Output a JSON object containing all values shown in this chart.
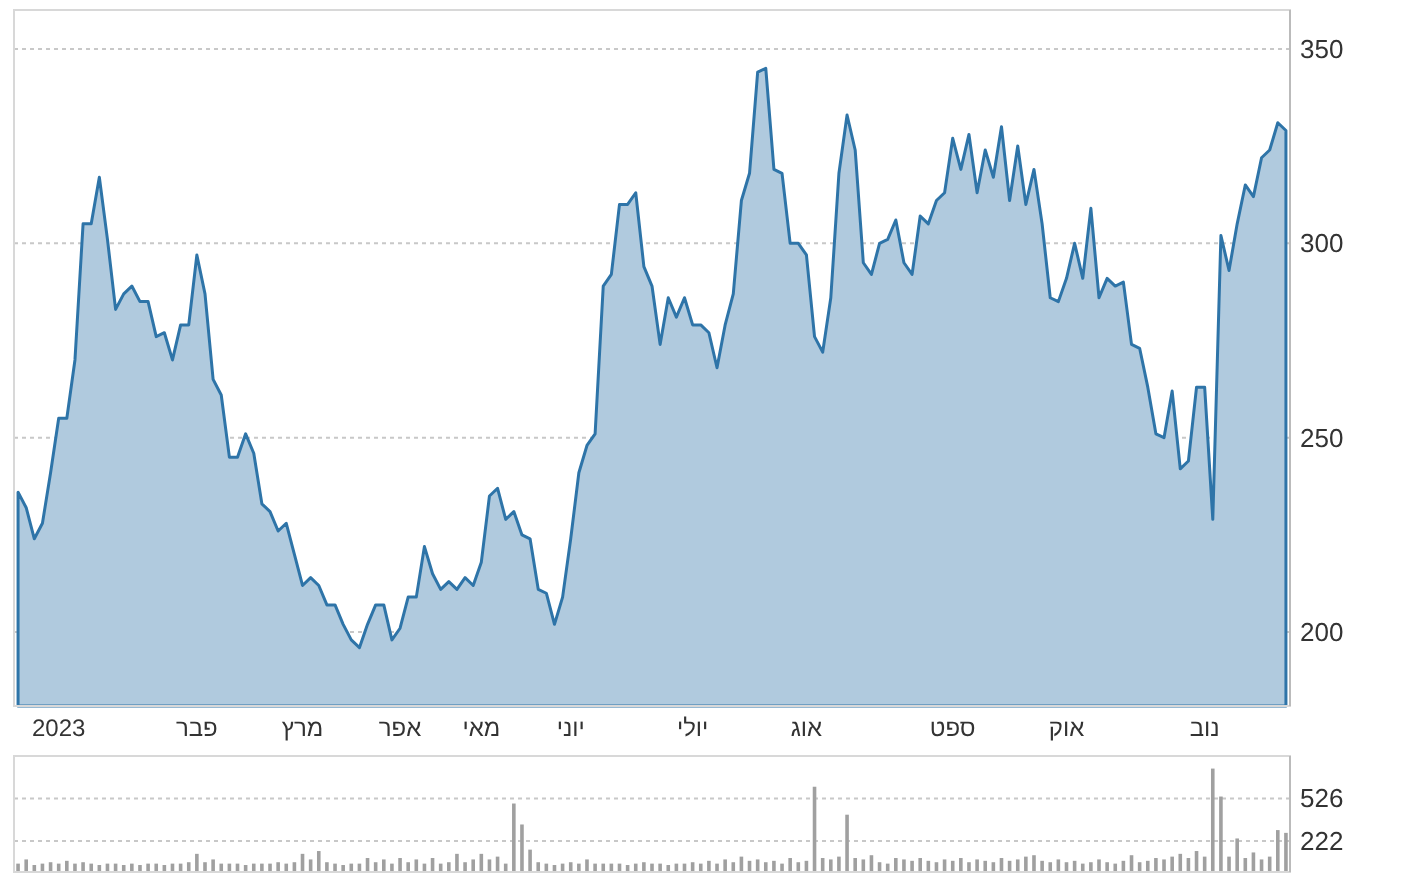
{
  "chart_data": [
    {
      "type": "area",
      "grid": "y",
      "ylim": [
        181,
        360
      ],
      "yticks": [
        200,
        250,
        300,
        350
      ],
      "categories": [
        null,
        null,
        null,
        null,
        null,
        "2023",
        null,
        null,
        null,
        null,
        null,
        null,
        null,
        null,
        null,
        null,
        null,
        null,
        null,
        null,
        null,
        null,
        "פבר",
        null,
        null,
        null,
        null,
        null,
        null,
        null,
        null,
        null,
        null,
        null,
        null,
        "מרץ",
        null,
        null,
        null,
        null,
        null,
        null,
        null,
        null,
        null,
        null,
        null,
        "אפר",
        null,
        null,
        null,
        null,
        null,
        null,
        null,
        null,
        null,
        "מאי",
        null,
        null,
        null,
        null,
        null,
        null,
        null,
        null,
        null,
        null,
        "יוני",
        null,
        null,
        null,
        null,
        null,
        null,
        null,
        null,
        null,
        null,
        null,
        null,
        null,
        null,
        "יולי",
        null,
        null,
        null,
        null,
        null,
        null,
        null,
        null,
        null,
        null,
        null,
        null,
        null,
        "אוג",
        null,
        null,
        null,
        null,
        null,
        null,
        null,
        null,
        null,
        null,
        null,
        null,
        null,
        null,
        null,
        null,
        null,
        "ספט",
        null,
        null,
        null,
        null,
        null,
        null,
        null,
        null,
        null,
        null,
        null,
        null,
        null,
        "אוק",
        null,
        null,
        null,
        null,
        null,
        null,
        null,
        null,
        null,
        null,
        null,
        null,
        null,
        null,
        null,
        null,
        "נוב",
        null,
        null,
        null,
        null,
        null,
        null,
        null,
        null,
        null,
        null
      ],
      "series": [
        {
          "color": "#2e74a8",
          "values": [
            236,
            232,
            224,
            228,
            241,
            255,
            255,
            270,
            305,
            305,
            317,
            301,
            283,
            287,
            289,
            285,
            285,
            276,
            277,
            270,
            279,
            279,
            297,
            287,
            265,
            261,
            245,
            245,
            251,
            246,
            233,
            231,
            226,
            228,
            220,
            212,
            214,
            212,
            207,
            207,
            202,
            198,
            196,
            202,
            207,
            207,
            198,
            201,
            209,
            209,
            222,
            215,
            211,
            213,
            211,
            214,
            212,
            218,
            235,
            237,
            229,
            231,
            225,
            224,
            211,
            210,
            202,
            209,
            224,
            241,
            248,
            251,
            289,
            292,
            310,
            310,
            313,
            294,
            289,
            274,
            286,
            281,
            286,
            279,
            279,
            277,
            268,
            279,
            287,
            311,
            318,
            344,
            345,
            319,
            318,
            300,
            300,
            297,
            276,
            272,
            286,
            318,
            333,
            324,
            295,
            292,
            300,
            301,
            306,
            295,
            292,
            307,
            305,
            311,
            313,
            327,
            319,
            328,
            313,
            324,
            317,
            330,
            311,
            325,
            310,
            319,
            305,
            286,
            285,
            291,
            300,
            291,
            309,
            286,
            291,
            289,
            290,
            274,
            273,
            263,
            251,
            250,
            262,
            242,
            244,
            263,
            263,
            229,
            302,
            293,
            305,
            315,
            312,
            322,
            324,
            331,
            329
          ]
        }
      ]
    },
    {
      "type": "bar",
      "grid": "y",
      "tick_labels": "y",
      "ylim": [
        0,
        830
      ],
      "yticks": [
        222,
        526
      ],
      "categories": [
        null,
        null,
        null,
        null,
        null,
        null,
        null,
        null,
        null,
        null,
        null,
        null,
        null,
        null,
        null,
        null,
        null,
        null,
        null,
        null,
        null,
        null,
        null,
        null,
        null,
        null,
        null,
        null,
        null,
        null,
        null,
        null,
        null,
        null,
        null,
        null,
        null,
        null,
        null,
        null,
        null,
        null,
        null,
        null,
        null,
        null,
        null,
        null,
        null,
        null,
        null,
        null,
        null,
        null,
        null,
        null,
        null,
        null,
        null,
        null,
        null,
        null,
        null,
        null,
        null,
        null,
        null,
        null,
        null,
        null,
        null,
        null,
        null,
        null,
        null,
        null,
        null,
        null,
        null,
        null,
        null,
        null,
        null,
        null,
        null,
        null,
        null,
        null,
        null,
        null,
        null,
        null,
        null,
        null,
        null,
        null,
        null,
        null,
        null,
        null,
        null,
        null,
        null,
        null,
        null,
        null,
        null,
        null,
        null,
        null,
        null,
        null,
        null,
        null,
        null,
        null,
        null,
        null,
        null,
        null,
        null,
        null,
        null,
        null,
        null,
        null,
        null,
        null,
        null,
        null,
        null,
        null,
        null,
        null,
        null,
        null,
        null,
        null,
        null,
        null,
        null,
        null,
        null,
        null,
        null,
        null,
        null,
        null,
        null,
        null,
        null,
        null,
        null,
        null,
        null,
        null,
        null
      ],
      "series": [
        {
          "color": "#a0a0a0",
          "values": [
            60,
            90,
            50,
            60,
            70,
            60,
            80,
            60,
            70,
            60,
            50,
            60,
            60,
            50,
            60,
            50,
            60,
            60,
            50,
            60,
            60,
            70,
            130,
            70,
            90,
            60,
            60,
            60,
            50,
            60,
            60,
            60,
            70,
            60,
            70,
            130,
            90,
            150,
            70,
            60,
            50,
            60,
            60,
            100,
            70,
            90,
            60,
            100,
            70,
            90,
            60,
            100,
            60,
            70,
            130,
            70,
            90,
            130,
            90,
            110,
            60,
            490,
            340,
            160,
            70,
            60,
            50,
            60,
            70,
            60,
            90,
            60,
            60,
            60,
            60,
            50,
            60,
            70,
            60,
            60,
            50,
            60,
            60,
            70,
            60,
            80,
            60,
            90,
            70,
            110,
            80,
            90,
            70,
            80,
            60,
            100,
            70,
            80,
            610,
            100,
            90,
            110,
            410,
            100,
            90,
            120,
            70,
            60,
            100,
            90,
            80,
            100,
            80,
            70,
            90,
            80,
            100,
            70,
            90,
            80,
            70,
            100,
            80,
            90,
            110,
            120,
            80,
            70,
            90,
            70,
            80,
            60,
            70,
            90,
            70,
            60,
            80,
            120,
            70,
            80,
            100,
            90,
            110,
            130,
            100,
            150,
            110,
            740,
            540,
            110,
            240,
            100,
            140,
            90,
            110,
            300,
            280
          ]
        }
      ]
    }
  ]
}
